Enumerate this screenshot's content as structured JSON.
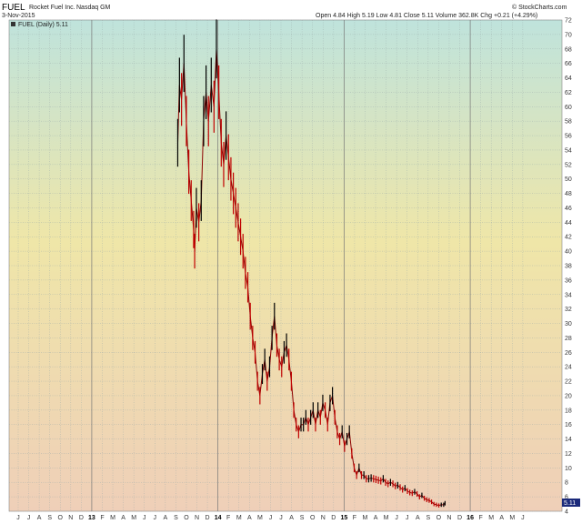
{
  "header": {
    "symbol": "FUEL",
    "company": "Rocket Fuel Inc.",
    "exchange": "Nasdaq GM",
    "date": "3-Nov-2015",
    "quote": "Open 4.84  High 5.19  Low 4.81  Close 5.11  Volume 362.8K  Chg +0.21 (+4.29%)",
    "source": "© StockCharts.com"
  },
  "legend": {
    "label": "FUEL (Daily) 5.11"
  },
  "last_price_label": "5.11",
  "colors": {
    "up": "#000000",
    "down": "#c00000",
    "badge": "#1b2a7a",
    "grad_top": "#bfe3dc",
    "grad_mid": "#efe6a8",
    "grad_bottom": "#efcfb8"
  },
  "chart_data": {
    "type": "line",
    "title": "FUEL Rocket Fuel Inc. Nasdaq GM",
    "ylim": [
      4,
      72
    ],
    "yticks": [
      4,
      6,
      8,
      10,
      12,
      14,
      16,
      18,
      20,
      22,
      24,
      26,
      28,
      30,
      32,
      34,
      36,
      38,
      40,
      42,
      44,
      46,
      48,
      50,
      52,
      54,
      56,
      58,
      60,
      62,
      64,
      66,
      68,
      70,
      72
    ],
    "x_tick_labels": [
      "J",
      "J",
      "A",
      "S",
      "O",
      "N",
      "D",
      "13",
      "F",
      "M",
      "A",
      "M",
      "J",
      "J",
      "A",
      "S",
      "O",
      "N",
      "D",
      "14",
      "F",
      "M",
      "A",
      "M",
      "J",
      "J",
      "A",
      "S",
      "O",
      "N",
      "D",
      "15",
      "F",
      "M",
      "A",
      "M",
      "J",
      "J",
      "A",
      "S",
      "O",
      "N",
      "D",
      "16",
      "F",
      "M",
      "A",
      "M",
      "J"
    ],
    "x_year_labels": [
      "13",
      "14",
      "15",
      "16"
    ],
    "series": [
      {
        "name": "FUEL",
        "x": [
          "2013-09-20",
          "2013-09-25",
          "2013-10-01",
          "2013-10-08",
          "2013-10-15",
          "2013-10-22",
          "2013-10-29",
          "2013-11-05",
          "2013-11-08",
          "2013-11-13",
          "2013-11-20",
          "2013-11-27",
          "2013-12-04",
          "2013-12-11",
          "2013-12-18",
          "2013-12-26",
          "2014-01-03",
          "2014-01-10",
          "2014-01-17",
          "2014-01-24",
          "2014-01-31",
          "2014-02-07",
          "2014-02-14",
          "2014-02-21",
          "2014-02-28",
          "2014-03-07",
          "2014-03-14",
          "2014-03-21",
          "2014-03-28",
          "2014-04-04",
          "2014-04-11",
          "2014-04-18",
          "2014-04-25",
          "2014-05-02",
          "2014-05-09",
          "2014-05-16",
          "2014-05-23",
          "2014-05-30",
          "2014-06-06",
          "2014-06-13",
          "2014-06-20",
          "2014-06-27",
          "2014-07-04",
          "2014-07-11",
          "2014-07-18",
          "2014-07-25",
          "2014-08-01",
          "2014-08-08",
          "2014-08-15",
          "2014-08-22",
          "2014-08-29",
          "2014-09-05",
          "2014-09-12",
          "2014-09-19",
          "2014-09-26",
          "2014-10-03",
          "2014-10-10",
          "2014-10-17",
          "2014-10-24",
          "2014-10-31",
          "2014-11-07",
          "2014-11-14",
          "2014-11-21",
          "2014-11-28",
          "2014-12-05",
          "2014-12-12",
          "2014-12-19",
          "2014-12-26",
          "2015-01-02",
          "2015-01-09",
          "2015-01-16",
          "2015-01-23",
          "2015-01-30",
          "2015-02-06",
          "2015-02-13",
          "2015-02-20",
          "2015-02-27",
          "2015-03-06",
          "2015-03-13",
          "2015-03-20",
          "2015-03-27",
          "2015-04-03",
          "2015-04-10",
          "2015-04-17",
          "2015-04-24",
          "2015-05-01",
          "2015-05-08",
          "2015-05-15",
          "2015-05-22",
          "2015-05-29",
          "2015-06-05",
          "2015-06-12",
          "2015-06-19",
          "2015-06-26",
          "2015-07-03",
          "2015-07-10",
          "2015-07-17",
          "2015-07-24",
          "2015-07-31",
          "2015-08-07",
          "2015-08-14",
          "2015-08-21",
          "2015-08-28",
          "2015-09-04",
          "2015-09-11",
          "2015-09-18",
          "2015-09-25",
          "2015-10-02",
          "2015-10-09",
          "2015-10-16",
          "2015-10-23",
          "2015-10-30",
          "2015-11-03"
        ],
        "values": [
          55,
          63,
          61,
          66,
          58,
          51,
          47,
          43,
          40,
          46,
          44,
          47,
          58,
          62,
          58,
          63,
          60,
          68,
          62,
          55,
          52,
          56,
          53,
          50,
          48,
          46,
          44,
          42,
          40,
          37,
          35,
          31,
          28,
          26,
          22,
          20,
          23,
          25,
          22,
          24,
          28,
          31,
          27,
          25,
          24,
          26,
          27,
          25,
          22,
          18,
          16,
          15,
          16,
          16,
          17,
          16,
          17,
          18,
          16,
          18,
          17,
          19,
          18,
          16,
          19,
          20,
          17,
          15,
          14,
          15,
          13,
          14,
          15,
          12,
          10,
          9,
          10,
          9,
          9,
          8.5,
          8.5,
          8.6,
          8.5,
          8.4,
          8.3,
          8.2,
          8.5,
          8.0,
          7.8,
          8.0,
          7.8,
          7.5,
          7.6,
          7.3,
          7.0,
          7.2,
          6.8,
          6.6,
          6.5,
          6.7,
          6.4,
          6.0,
          6.2,
          5.8,
          5.6,
          5.5,
          5.3,
          5.0,
          4.9,
          4.8,
          4.9,
          4.9,
          5.11
        ]
      }
    ]
  }
}
